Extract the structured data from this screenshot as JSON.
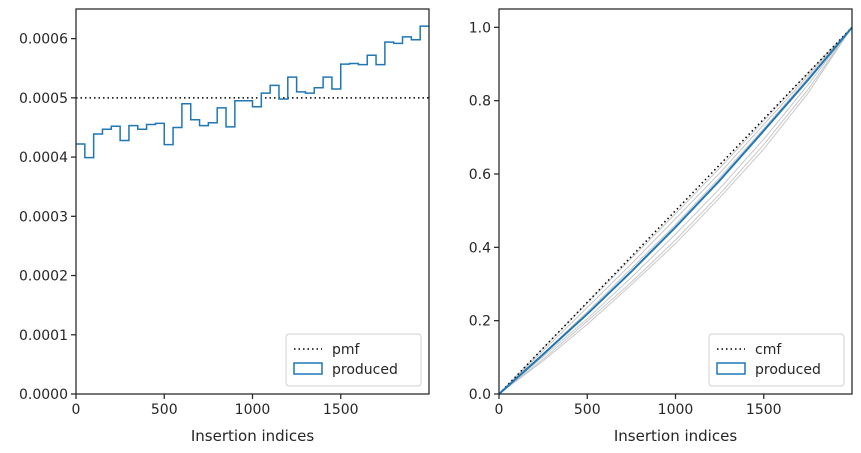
{
  "chart_data": [
    {
      "type": "step",
      "xlabel": "Insertion indices",
      "ylabel": "",
      "xlim": [
        0,
        2000
      ],
      "ylim": [
        0,
        0.00065
      ],
      "xticks": [
        0,
        500,
        1000,
        1500
      ],
      "yticks": [
        0,
        0.0001,
        0.0002,
        0.0003,
        0.0004,
        0.0005,
        0.0006
      ],
      "ytick_labels": [
        "0.0000",
        "0.0001",
        "0.0002",
        "0.0003",
        "0.0004",
        "0.0005",
        "0.0006"
      ],
      "legend": {
        "placement": "lower-right",
        "entries": [
          "pmf",
          "produced"
        ]
      },
      "reference_line": {
        "name": "pmf",
        "y": 0.0005,
        "style": "dotted",
        "color": "#000000"
      },
      "histogram": {
        "name": "produced",
        "color": "#1f77b4",
        "bin_width": 50,
        "bin_edges_start": 0,
        "values": [
          0.000422,
          0.000399,
          0.000439,
          0.000447,
          0.000452,
          0.000428,
          0.000453,
          0.000447,
          0.000455,
          0.000457,
          0.000421,
          0.00045,
          0.00049,
          0.000463,
          0.000453,
          0.000458,
          0.000483,
          0.000451,
          0.000495,
          0.000495,
          0.000485,
          0.000508,
          0.000521,
          0.000498,
          0.000535,
          0.00051,
          0.000508,
          0.000517,
          0.000535,
          0.000515,
          0.000557,
          0.000558,
          0.000556,
          0.000572,
          0.000556,
          0.000594,
          0.000592,
          0.000603,
          0.000598,
          0.000621
        ]
      }
    },
    {
      "type": "line",
      "xlabel": "Insertion indices",
      "ylabel": "",
      "xlim": [
        0,
        2000
      ],
      "ylim": [
        0,
        1.05
      ],
      "xticks": [
        0,
        500,
        1000,
        1500
      ],
      "yticks": [
        0,
        0.2,
        0.4,
        0.6,
        0.8,
        1.0
      ],
      "ytick_labels": [
        "0.0",
        "0.2",
        "0.4",
        "0.6",
        "0.8",
        "1.0"
      ],
      "legend": {
        "placement": "lower-right",
        "entries": [
          "cmf",
          "produced"
        ]
      },
      "reference_line": {
        "name": "cmf",
        "x": [
          0,
          2000
        ],
        "y": [
          0,
          1
        ],
        "style": "dotted",
        "color": "#000000"
      },
      "produced": {
        "name": "produced",
        "color": "#1f77b4",
        "x": [
          0,
          250,
          500,
          750,
          1000,
          1250,
          1500,
          1750,
          2000
        ],
        "y": [
          0,
          0.108,
          0.218,
          0.334,
          0.455,
          0.582,
          0.718,
          0.856,
          1.0
        ]
      },
      "background_lines": {
        "color": "#c8c8c8",
        "x": [
          0,
          250,
          500,
          750,
          1000,
          1250,
          1500,
          1750,
          2000
        ],
        "series": [
          [
            0,
            0.095,
            0.198,
            0.305,
            0.42,
            0.545,
            0.68,
            0.83,
            1.0
          ],
          [
            0,
            0.102,
            0.205,
            0.318,
            0.436,
            0.56,
            0.695,
            0.843,
            1.0
          ],
          [
            0,
            0.11,
            0.224,
            0.342,
            0.462,
            0.59,
            0.724,
            0.862,
            1.0
          ],
          [
            0,
            0.118,
            0.236,
            0.355,
            0.478,
            0.602,
            0.735,
            0.868,
            1.0
          ],
          [
            0,
            0.125,
            0.248,
            0.37,
            0.492,
            0.616,
            0.745,
            0.875,
            1.0
          ],
          [
            0,
            0.09,
            0.19,
            0.298,
            0.41,
            0.535,
            0.668,
            0.82,
            1.0
          ]
        ]
      }
    }
  ]
}
